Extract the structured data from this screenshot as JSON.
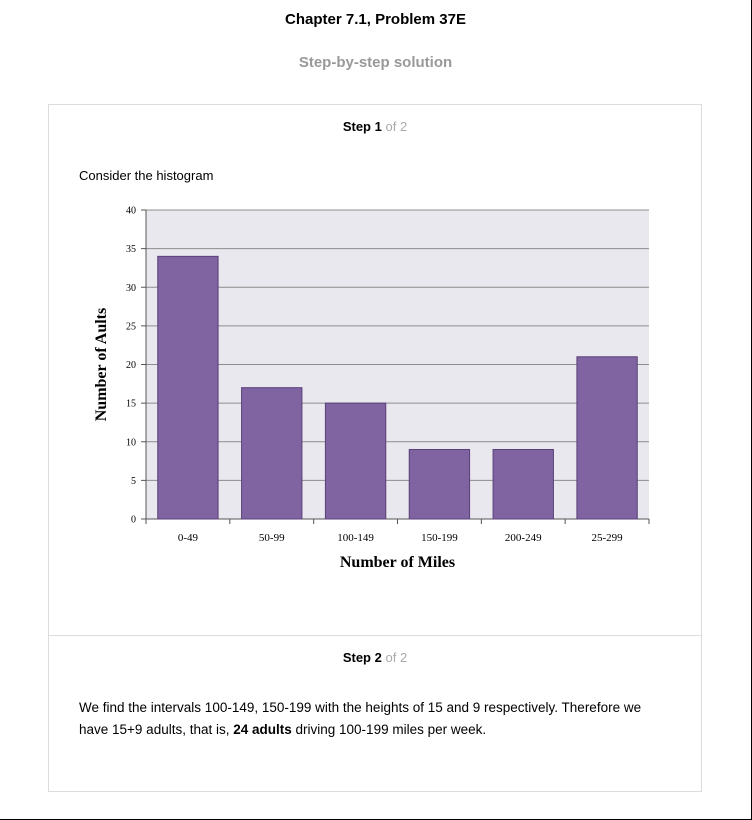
{
  "header": {
    "title": "Chapter 7.1, Problem 37E",
    "subtitle": "Step-by-step solution"
  },
  "step1": {
    "word": "Step",
    "number": "1",
    "of": "of 2",
    "intro": "Consider the histogram"
  },
  "step2": {
    "word": "Step",
    "number": "2",
    "of": "of 2",
    "text_before": "We find the intervals 100-149, 150-199 with the heights of 15 and 9 respectively. Therefore we have 15+9 adults, that is, ",
    "text_bold": "24 adults",
    "text_after": " driving 100-199 miles per week."
  },
  "colors": {
    "bar_fill": "#8063a1",
    "bar_stroke": "#5a4079",
    "plot_bg": "#eae8ef",
    "grid": "#8c8c8c"
  },
  "chart_data": {
    "type": "bar",
    "categories": [
      "0-49",
      "50-99",
      "100-149",
      "150-199",
      "200-249",
      "25-299"
    ],
    "values": [
      34,
      17,
      15,
      9,
      9,
      21
    ],
    "yticks": [
      0,
      5,
      10,
      15,
      20,
      25,
      30,
      35,
      40
    ],
    "ylim": [
      0,
      40
    ],
    "xlabel": "Number of Miles",
    "ylabel": "Number of Aults",
    "title": "",
    "grid": true
  }
}
